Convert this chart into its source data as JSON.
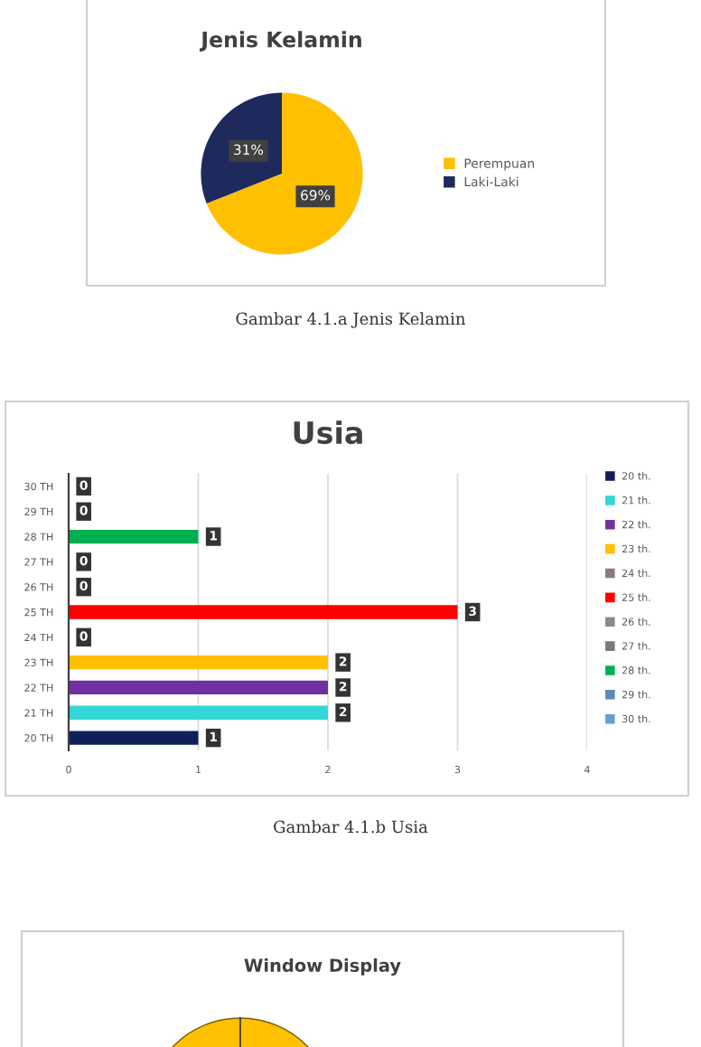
{
  "chart_data": [
    {
      "type": "pie",
      "title": "Jenis Kelamin",
      "categories": [
        "Perempuan",
        "Laki-Laki"
      ],
      "values": [
        69,
        31
      ],
      "colors": [
        "#ffc000",
        "#1f2a5c"
      ],
      "value_labels": [
        "69%",
        "31%"
      ],
      "legend": "right",
      "annotations": [
        "Gambar 4.1.a Jenis Kelamin"
      ]
    },
    {
      "type": "bar",
      "orientation": "horizontal",
      "title": "Usia",
      "categories": [
        "30 TH",
        "29 TH",
        "28 TH",
        "27 TH",
        "26 TH",
        "25 TH",
        "24 TH",
        "23 TH",
        "22 TH",
        "21 TH",
        "20 TH"
      ],
      "series": [
        {
          "name": "20 th.",
          "color": "#0f1f5c",
          "values": [
            null,
            null,
            null,
            null,
            null,
            null,
            null,
            null,
            null,
            null,
            1
          ]
        },
        {
          "name": "21 th.",
          "color": "#33d6d6",
          "values": [
            null,
            null,
            null,
            null,
            null,
            null,
            null,
            null,
            null,
            2,
            null
          ]
        },
        {
          "name": "22 th.",
          "color": "#7030a0",
          "values": [
            null,
            null,
            null,
            null,
            null,
            null,
            null,
            null,
            2,
            null,
            null
          ]
        },
        {
          "name": "23 th.",
          "color": "#ffc000",
          "values": [
            null,
            null,
            null,
            null,
            null,
            null,
            null,
            2,
            null,
            null,
            null
          ]
        },
        {
          "name": "24 th.",
          "color": "#8c7b78",
          "values": [
            null,
            null,
            null,
            null,
            null,
            null,
            0,
            null,
            null,
            null,
            null
          ]
        },
        {
          "name": "25 th.",
          "color": "#ff0000",
          "values": [
            null,
            null,
            null,
            null,
            null,
            3,
            null,
            null,
            null,
            null,
            null
          ]
        },
        {
          "name": "26 th.",
          "color": "#8a8a8a",
          "values": [
            null,
            null,
            null,
            null,
            0,
            null,
            null,
            null,
            null,
            null,
            null
          ]
        },
        {
          "name": "27 th.",
          "color": "#7a7a7a",
          "values": [
            null,
            null,
            null,
            0,
            null,
            null,
            null,
            null,
            null,
            null,
            null
          ]
        },
        {
          "name": "28 th.",
          "color": "#00b050",
          "values": [
            null,
            null,
            1,
            null,
            null,
            null,
            null,
            null,
            null,
            null,
            null
          ]
        },
        {
          "name": "29 th.",
          "color": "#5b8ab5",
          "values": [
            null,
            0,
            null,
            null,
            null,
            null,
            null,
            null,
            null,
            null,
            null
          ]
        },
        {
          "name": "30 th.",
          "color": "#6a9fd0",
          "values": [
            0,
            null,
            null,
            null,
            null,
            null,
            null,
            null,
            null,
            null,
            null
          ]
        }
      ],
      "xlim": [
        0,
        4
      ],
      "xticks": [
        0,
        1,
        2,
        3,
        4
      ],
      "grid": "x",
      "data_labels": true,
      "legend": "right",
      "annotations": [
        "Gambar 4.1.b Usia"
      ]
    },
    {
      "type": "other",
      "title": "Window Display"
    }
  ]
}
